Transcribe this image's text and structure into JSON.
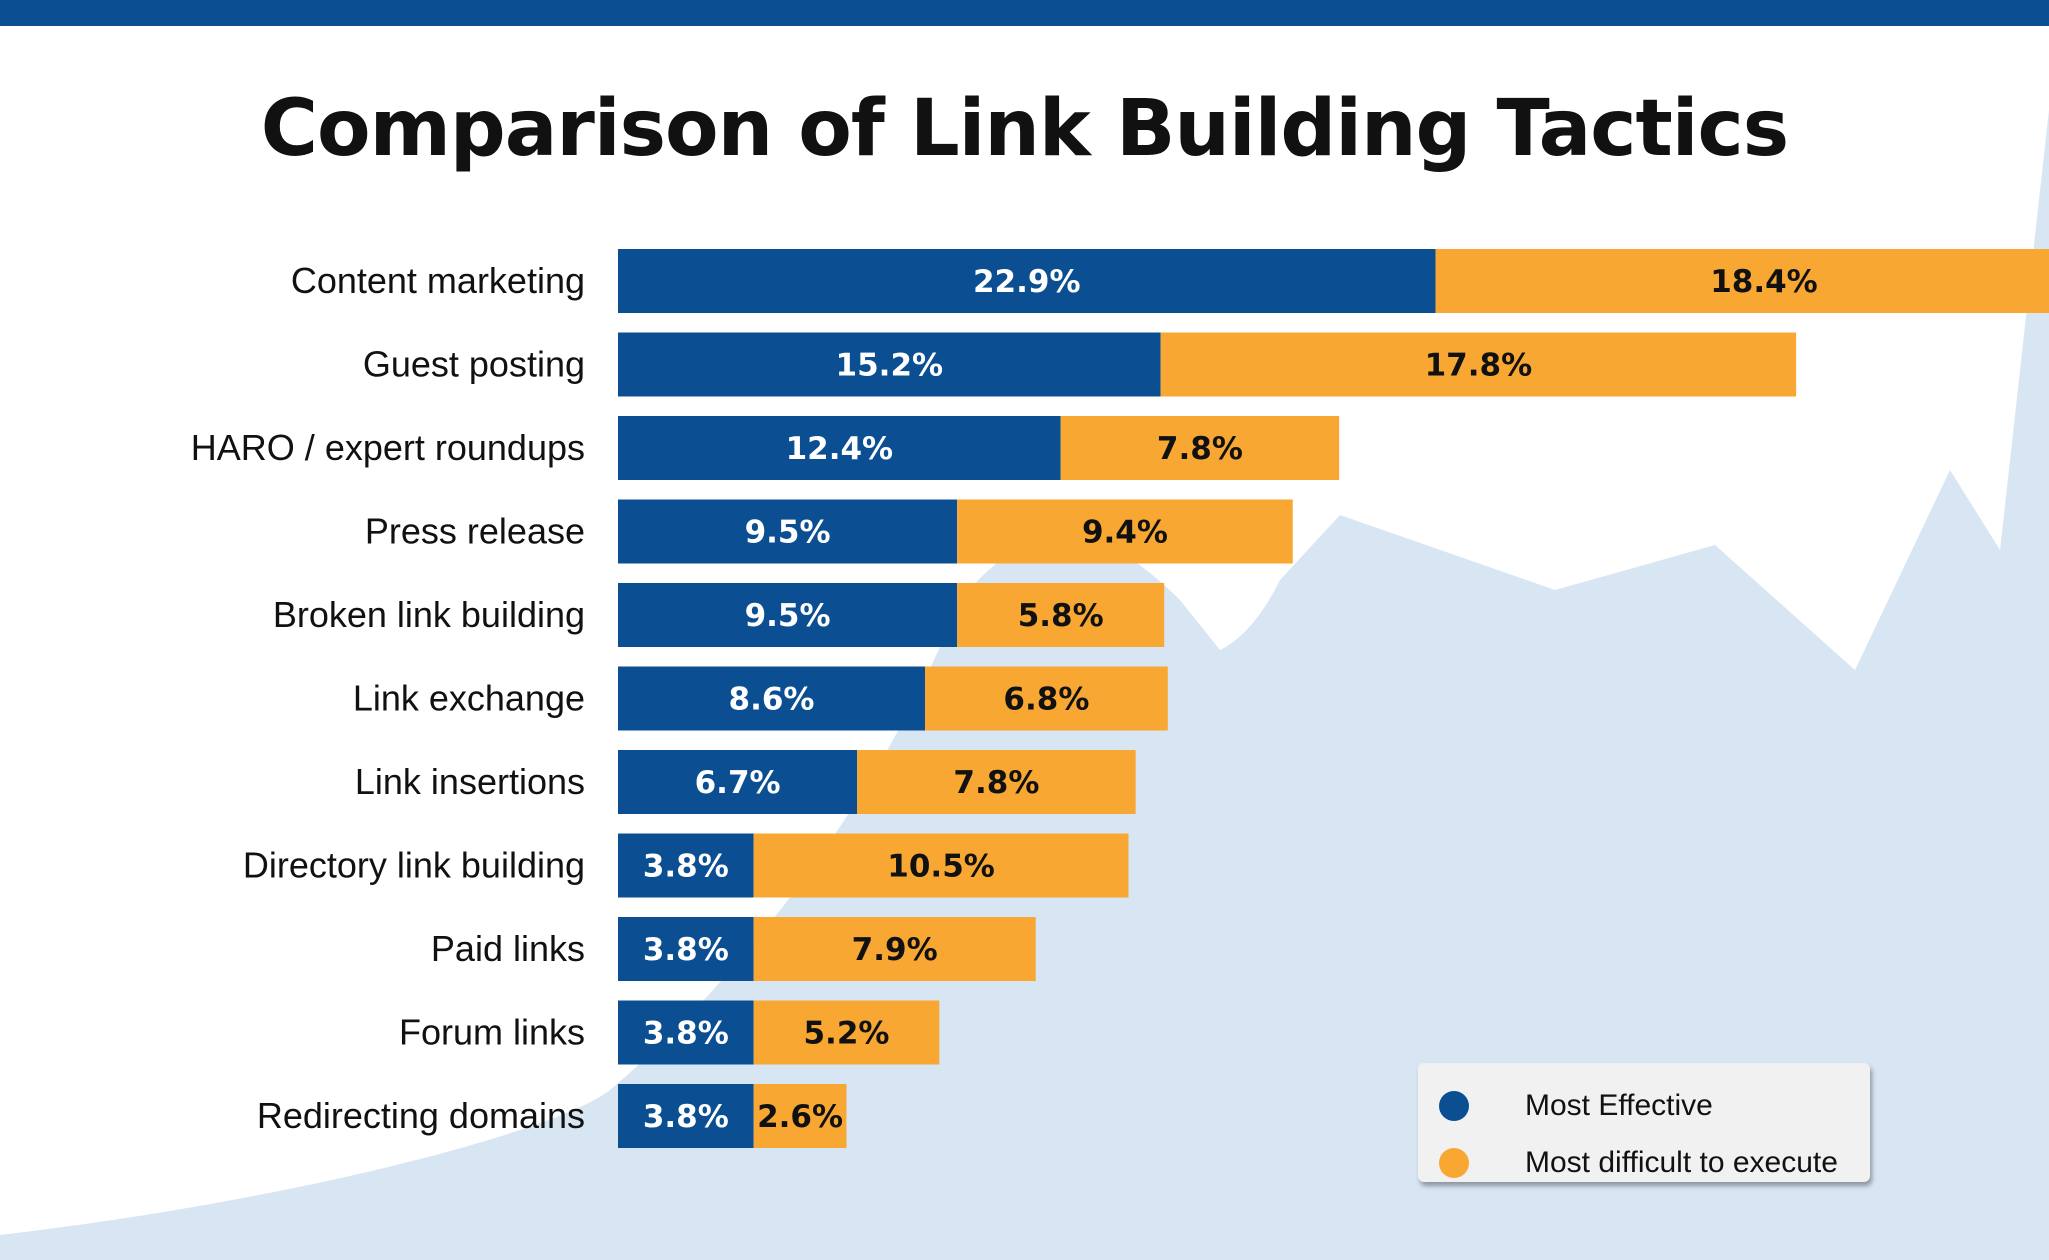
{
  "title": "Comparison of Link Building Tactics",
  "colors": {
    "effective": "#0b4f92",
    "difficult": "#f8a732",
    "background_mountain": "#d8e6f3",
    "top_bar": "#0b4f92"
  },
  "legend": {
    "effective_label": "Most Effective",
    "difficult_label": "Most difficult to execute",
    "placement": "bottom-right"
  },
  "chart_data": {
    "type": "bar",
    "orientation": "horizontal",
    "stacked": true,
    "title": "Comparison of Link Building Tactics",
    "categories": [
      "Content marketing",
      "Guest posting",
      "HARO / expert roundups",
      "Press release",
      "Broken link building",
      "Link exchange",
      "Link insertions",
      "Directory link building",
      "Paid links",
      "Forum links",
      "Redirecting domains"
    ],
    "series": [
      {
        "name": "Most Effective",
        "values": [
          22.9,
          15.2,
          12.4,
          9.5,
          9.5,
          8.6,
          6.7,
          3.8,
          3.8,
          3.8,
          3.8
        ],
        "labels": [
          "22.9%",
          "15.2%",
          "12.4%",
          "9.5%",
          "9.5%",
          "8.6%",
          "6.7%",
          "3.8%",
          "3.8%",
          "3.8%",
          "3.8%"
        ]
      },
      {
        "name": "Most difficult to execute",
        "values": [
          18.4,
          17.8,
          7.8,
          9.4,
          5.8,
          6.8,
          7.8,
          10.5,
          7.9,
          5.2,
          2.6
        ],
        "labels": [
          "18.4%",
          "17.8%",
          "7.8%",
          "9.4%",
          "5.8%",
          "6.8%",
          "7.8%",
          "10.5%",
          "7.9%",
          "5.2%",
          "2.6%"
        ]
      }
    ],
    "grid": false,
    "axes_visible": false,
    "legend_position": "bottom-right"
  }
}
